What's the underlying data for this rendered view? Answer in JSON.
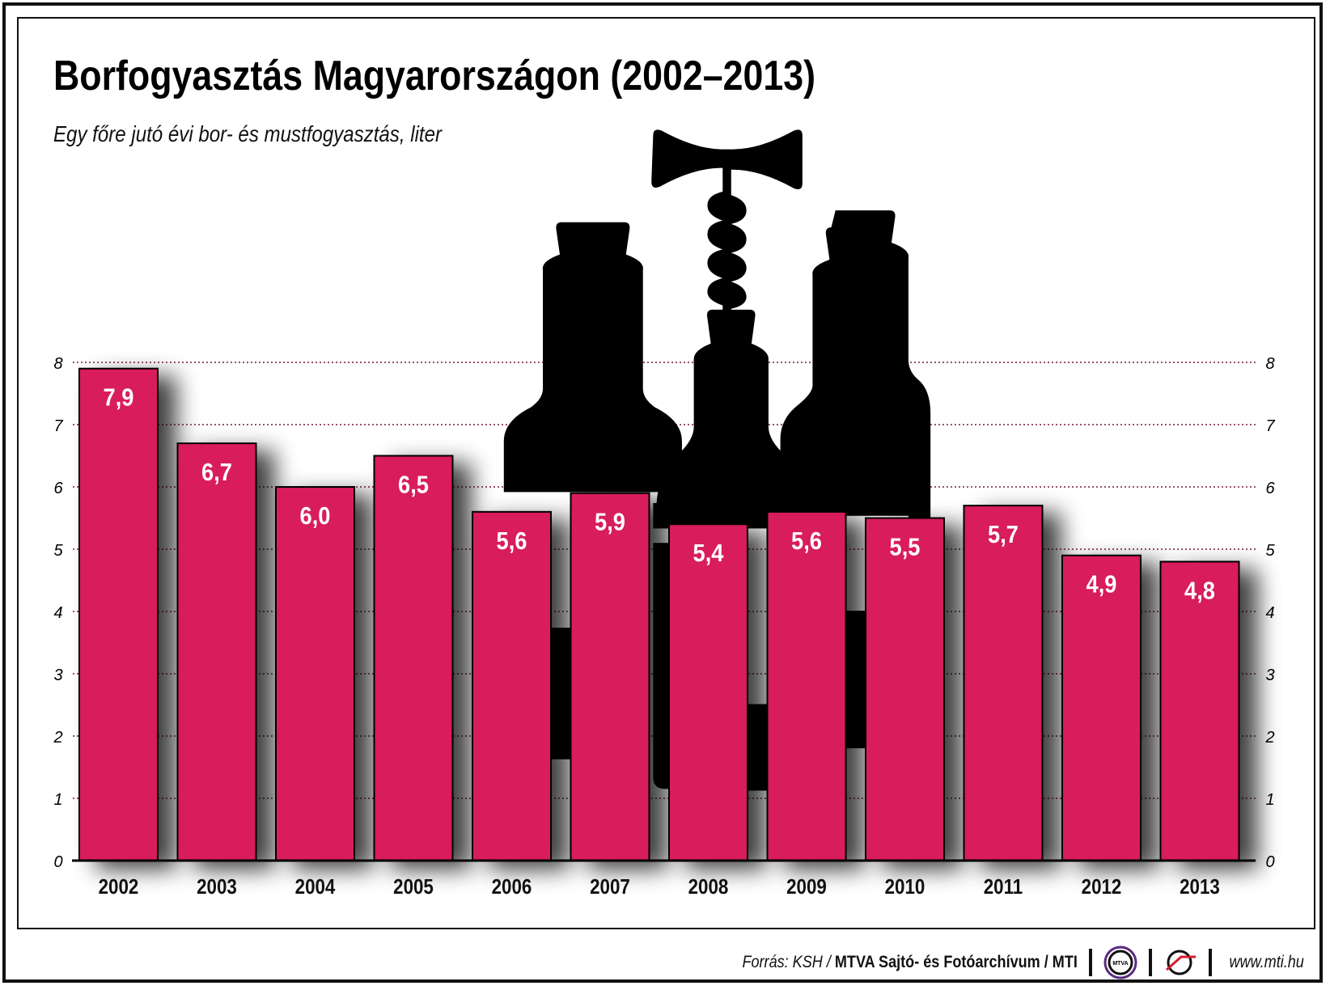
{
  "chart_data": {
    "type": "bar",
    "title": "Borfogyasztás Magyarországon (2002–2013)",
    "subtitle": "Egy főre jutó évi bor- és mustfogyasztás, liter",
    "categories": [
      "2002",
      "2003",
      "2004",
      "2005",
      "2006",
      "2007",
      "2008",
      "2009",
      "2010",
      "2011",
      "2012",
      "2013"
    ],
    "values": [
      7.9,
      6.7,
      6.0,
      6.5,
      5.6,
      5.9,
      5.4,
      5.6,
      5.5,
      5.7,
      4.9,
      4.8
    ],
    "data_labels": [
      "7,9",
      "6,7",
      "6,0",
      "6,5",
      "5,6",
      "5,9",
      "5,4",
      "5,6",
      "5,5",
      "5,7",
      "4,9",
      "4,8"
    ],
    "ylim": [
      0,
      8
    ],
    "yticks": [
      "0",
      "1",
      "2",
      "3",
      "4",
      "5",
      "6",
      "7",
      "8"
    ],
    "y_axis_sides": "left and right",
    "grid": true,
    "bar_color": "#d81b5b",
    "grid_color": "#7a1a30",
    "background_illustration": "wine bottles and corkscrew silhouettes"
  },
  "footer": {
    "source_prefix": "Forrás: KSH / ",
    "source_bold": "MTVA Sajtó- és Fotóarchívum / MTI",
    "logo1_text": "MTVA",
    "website": "www.mti.hu"
  }
}
